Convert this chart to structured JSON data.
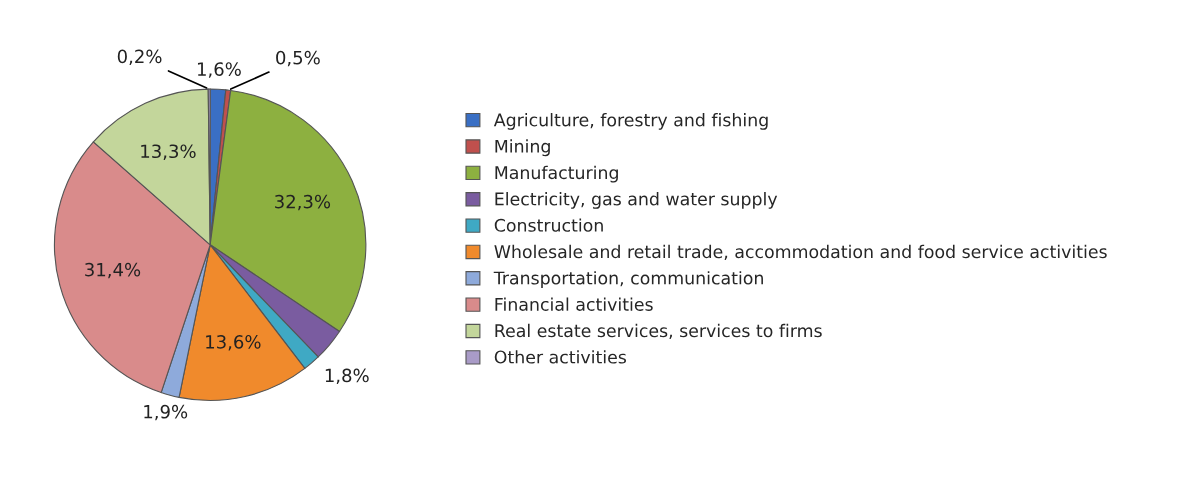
{
  "chart_data": {
    "type": "pie",
    "categories": [
      "Agriculture, forestry and fishing",
      "Mining",
      "Manufacturing",
      "Electricity, gas and water supply",
      "Construction",
      "Wholesale and retail trade, accommodation and food service activities",
      "Transportation, communication",
      "Financial activities",
      "Real estate services, services to firms",
      "Other activities"
    ],
    "values": [
      1.6,
      0.5,
      32.3,
      3.4,
      1.8,
      13.6,
      1.9,
      31.4,
      13.3,
      0.2
    ],
    "value_labels": [
      "1,6%",
      "0,5%",
      "32,3%",
      null,
      "1,8%",
      "13,6%",
      "1,9%",
      "31,4%",
      "13,3%",
      "0,2%"
    ],
    "colors": [
      "#3a6fc4",
      "#c0504d",
      "#8db040",
      "#7a5ca0",
      "#3fa9c4",
      "#f08a2c",
      "#8eaadb",
      "#d98b8b",
      "#c3d69b",
      "#a99bc7"
    ],
    "legend": "right"
  }
}
